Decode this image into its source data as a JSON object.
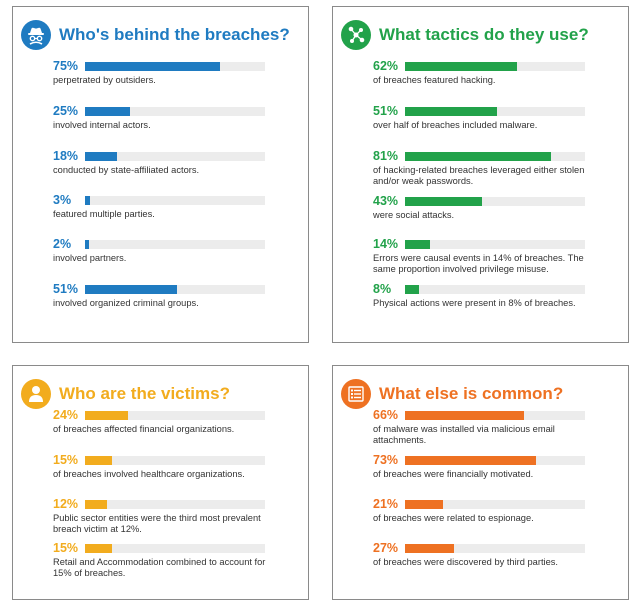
{
  "chart_data": [
    {
      "type": "bar",
      "title": "Who's behind the breaches?",
      "color": "#1f7bc1",
      "icon": "hacker-icon",
      "values": [
        75,
        25,
        18,
        3,
        2,
        51
      ],
      "items": [
        {
          "percent": "75%",
          "value": 75,
          "desc": "perpetrated by outsiders."
        },
        {
          "percent": "25%",
          "value": 25,
          "desc": "involved internal actors."
        },
        {
          "percent": "18%",
          "value": 18,
          "desc": "conducted by state-affiliated actors."
        },
        {
          "percent": "3%",
          "value": 3,
          "desc": "featured multiple parties."
        },
        {
          "percent": "2%",
          "value": 2,
          "desc": "involved partners."
        },
        {
          "percent": "51%",
          "value": 51,
          "desc": "involved organized criminal groups."
        }
      ]
    },
    {
      "type": "bar",
      "title": "What tactics do they use?",
      "color": "#22a24a",
      "icon": "network-nodes-icon",
      "values": [
        62,
        51,
        81,
        43,
        14,
        8
      ],
      "items": [
        {
          "percent": "62%",
          "value": 62,
          "desc": "of breaches featured hacking."
        },
        {
          "percent": "51%",
          "value": 51,
          "desc": "over half of breaches included malware."
        },
        {
          "percent": "81%",
          "value": 81,
          "desc": "of hacking-related breaches leveraged either stolen and/or weak passwords."
        },
        {
          "percent": "43%",
          "value": 43,
          "desc": "were social attacks."
        },
        {
          "percent": "14%",
          "value": 14,
          "desc": "Errors were causal events in 14% of breaches. The same proportion involved privilege misuse."
        },
        {
          "percent": "8%",
          "value": 8,
          "desc": "Physical actions were present in 8% of breaches."
        }
      ]
    },
    {
      "type": "bar",
      "title": "Who are the victims?",
      "color": "#f2ac1e",
      "icon": "person-icon",
      "values": [
        24,
        15,
        12,
        15
      ],
      "items": [
        {
          "percent": "24%",
          "value": 24,
          "desc": "of breaches affected financial organizations."
        },
        {
          "percent": "15%",
          "value": 15,
          "desc": "of breaches involved healthcare organizations."
        },
        {
          "percent": "12%",
          "value": 12,
          "desc": "Public sector entities were the third most prevalent breach victim at 12%."
        },
        {
          "percent": "15%",
          "value": 15,
          "desc": "Retail and Accommodation combined to account for 15% of breaches."
        }
      ]
    },
    {
      "type": "bar",
      "title": "What else is common?",
      "color": "#ee7122",
      "icon": "list-icon",
      "values": [
        66,
        73,
        21,
        27
      ],
      "items": [
        {
          "percent": "66%",
          "value": 66,
          "desc": "of malware was installed via malicious email attachments."
        },
        {
          "percent": "73%",
          "value": 73,
          "desc": "of breaches were financially motivated."
        },
        {
          "percent": "21%",
          "value": 21,
          "desc": "of breaches were related to espionage."
        },
        {
          "percent": "27%",
          "value": 27,
          "desc": "of breaches were discovered by third parties."
        }
      ]
    }
  ]
}
